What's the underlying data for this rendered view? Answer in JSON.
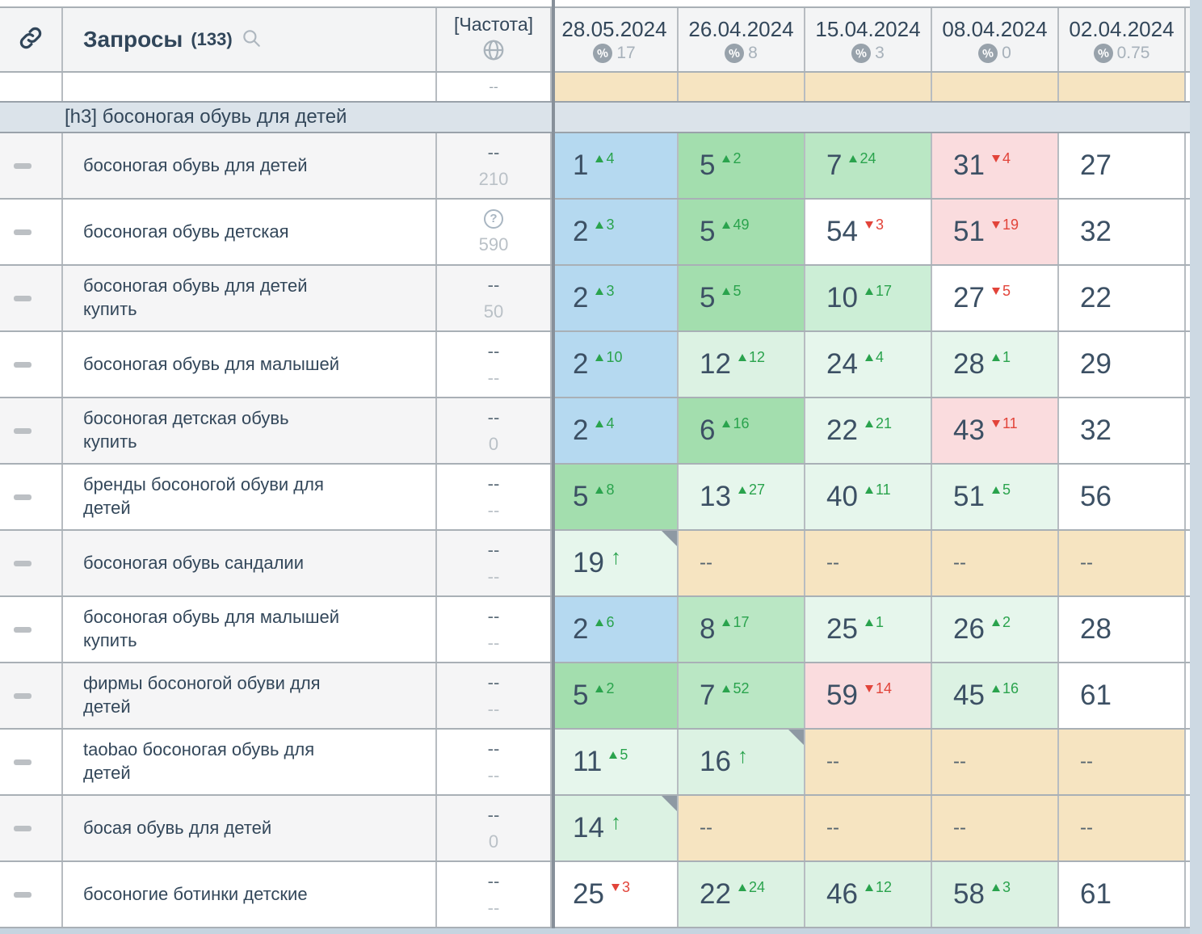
{
  "header": {
    "queries_label": "Запросы",
    "queries_count": "(133)",
    "frequency_label": "[Частота]",
    "date_columns": [
      {
        "date": "28.05.2024",
        "percent": "17"
      },
      {
        "date": "26.04.2024",
        "percent": "8"
      },
      {
        "date": "15.04.2024",
        "percent": "3"
      },
      {
        "date": "08.04.2024",
        "percent": "0"
      },
      {
        "date": "02.04.2024",
        "percent": "0.75"
      }
    ]
  },
  "group_header": "[h3] босоногая обувь для детей",
  "partial_row": {
    "freq": "--"
  },
  "rows": [
    {
      "query": "босоногая обувь для детей",
      "freq_top": "--",
      "freq_bottom": "210",
      "cells": [
        {
          "v": "1",
          "chg": "4",
          "dir": "up",
          "bg": "blue"
        },
        {
          "v": "5",
          "chg": "2",
          "dir": "up",
          "bg": "g1"
        },
        {
          "v": "7",
          "chg": "24",
          "dir": "up",
          "bg": "g2"
        },
        {
          "v": "31",
          "chg": "4",
          "dir": "down",
          "bg": "pink"
        },
        {
          "v": "27",
          "dir": "none",
          "bg": "white"
        }
      ]
    },
    {
      "query": "босоногая обувь детская",
      "freq_top": "?",
      "freq_bottom": "590",
      "cells": [
        {
          "v": "2",
          "chg": "3",
          "dir": "up",
          "bg": "blue"
        },
        {
          "v": "5",
          "chg": "49",
          "dir": "up",
          "bg": "g1"
        },
        {
          "v": "54",
          "chg": "3",
          "dir": "down",
          "bg": "white"
        },
        {
          "v": "51",
          "chg": "19",
          "dir": "down",
          "bg": "pink"
        },
        {
          "v": "32",
          "dir": "none",
          "bg": "white"
        }
      ]
    },
    {
      "query": "босоногая обувь для детей купить",
      "freq_top": "--",
      "freq_bottom": "50",
      "cells": [
        {
          "v": "2",
          "chg": "3",
          "dir": "up",
          "bg": "blue"
        },
        {
          "v": "5",
          "chg": "5",
          "dir": "up",
          "bg": "g1"
        },
        {
          "v": "10",
          "chg": "17",
          "dir": "up",
          "bg": "g3"
        },
        {
          "v": "27",
          "chg": "5",
          "dir": "down",
          "bg": "white"
        },
        {
          "v": "22",
          "dir": "none",
          "bg": "white"
        }
      ]
    },
    {
      "query": "босоногая обувь для малышей",
      "freq_top": "--",
      "freq_bottom": "--",
      "cells": [
        {
          "v": "2",
          "chg": "10",
          "dir": "up",
          "bg": "blue"
        },
        {
          "v": "12",
          "chg": "12",
          "dir": "up",
          "bg": "g4"
        },
        {
          "v": "24",
          "chg": "4",
          "dir": "up",
          "bg": "g5"
        },
        {
          "v": "28",
          "chg": "1",
          "dir": "up",
          "bg": "g5"
        },
        {
          "v": "29",
          "dir": "none",
          "bg": "white"
        }
      ]
    },
    {
      "query": "босоногая детская обувь купить",
      "freq_top": "--",
      "freq_bottom": "0",
      "cells": [
        {
          "v": "2",
          "chg": "4",
          "dir": "up",
          "bg": "blue"
        },
        {
          "v": "6",
          "chg": "16",
          "dir": "up",
          "bg": "g1"
        },
        {
          "v": "22",
          "chg": "21",
          "dir": "up",
          "bg": "g5"
        },
        {
          "v": "43",
          "chg": "11",
          "dir": "down",
          "bg": "pink"
        },
        {
          "v": "32",
          "dir": "none",
          "bg": "white"
        }
      ]
    },
    {
      "query": "бренды босоногой обуви для детей",
      "freq_top": "--",
      "freq_bottom": "--",
      "cells": [
        {
          "v": "5",
          "chg": "8",
          "dir": "up",
          "bg": "g1"
        },
        {
          "v": "13",
          "chg": "27",
          "dir": "up",
          "bg": "g5"
        },
        {
          "v": "40",
          "chg": "11",
          "dir": "up",
          "bg": "g5"
        },
        {
          "v": "51",
          "chg": "5",
          "dir": "up",
          "bg": "g5"
        },
        {
          "v": "56",
          "dir": "none",
          "bg": "white"
        }
      ]
    },
    {
      "query": "босоногая обувь сандалии",
      "freq_top": "--",
      "freq_bottom": "--",
      "cells": [
        {
          "v": "19",
          "dir": "new",
          "bg": "g5",
          "corner": true
        },
        {
          "v": "--",
          "dir": "none",
          "bg": "tan"
        },
        {
          "v": "--",
          "dir": "none",
          "bg": "tan"
        },
        {
          "v": "--",
          "dir": "none",
          "bg": "tan"
        },
        {
          "v": "--",
          "dir": "none",
          "bg": "tan"
        }
      ]
    },
    {
      "query": "босоногая обувь для малышей купить",
      "freq_top": "--",
      "freq_bottom": "--",
      "cells": [
        {
          "v": "2",
          "chg": "6",
          "dir": "up",
          "bg": "blue"
        },
        {
          "v": "8",
          "chg": "17",
          "dir": "up",
          "bg": "g2"
        },
        {
          "v": "25",
          "chg": "1",
          "dir": "up",
          "bg": "g5"
        },
        {
          "v": "26",
          "chg": "2",
          "dir": "up",
          "bg": "g5"
        },
        {
          "v": "28",
          "dir": "none",
          "bg": "white"
        }
      ]
    },
    {
      "query": "фирмы босоногой обуви для детей",
      "freq_top": "--",
      "freq_bottom": "--",
      "cells": [
        {
          "v": "5",
          "chg": "2",
          "dir": "up",
          "bg": "g1"
        },
        {
          "v": "7",
          "chg": "52",
          "dir": "up",
          "bg": "g2"
        },
        {
          "v": "59",
          "chg": "14",
          "dir": "down",
          "bg": "pink"
        },
        {
          "v": "45",
          "chg": "16",
          "dir": "up",
          "bg": "g4"
        },
        {
          "v": "61",
          "dir": "none",
          "bg": "white"
        }
      ]
    },
    {
      "query": "taobao босоногая обувь для детей",
      "freq_top": "--",
      "freq_bottom": "--",
      "cells": [
        {
          "v": "11",
          "chg": "5",
          "dir": "up",
          "bg": "g5"
        },
        {
          "v": "16",
          "dir": "new",
          "bg": "g4",
          "corner": true
        },
        {
          "v": "--",
          "dir": "none",
          "bg": "tan"
        },
        {
          "v": "--",
          "dir": "none",
          "bg": "tan"
        },
        {
          "v": "--",
          "dir": "none",
          "bg": "tan"
        }
      ]
    },
    {
      "query": "босая обувь для детей",
      "freq_top": "--",
      "freq_bottom": "0",
      "cells": [
        {
          "v": "14",
          "dir": "new",
          "bg": "g4",
          "corner": true
        },
        {
          "v": "--",
          "dir": "none",
          "bg": "tan"
        },
        {
          "v": "--",
          "dir": "none",
          "bg": "tan"
        },
        {
          "v": "--",
          "dir": "none",
          "bg": "tan"
        },
        {
          "v": "--",
          "dir": "none",
          "bg": "tan"
        }
      ]
    },
    {
      "query": "босоногие ботинки детские",
      "freq_top": "--",
      "freq_bottom": "--",
      "cells": [
        {
          "v": "25",
          "chg": "3",
          "dir": "down",
          "bg": "white"
        },
        {
          "v": "22",
          "chg": "24",
          "dir": "up",
          "bg": "g4"
        },
        {
          "v": "46",
          "chg": "12",
          "dir": "up",
          "bg": "g4"
        },
        {
          "v": "58",
          "chg": "3",
          "dir": "up",
          "bg": "g4"
        },
        {
          "v": "61",
          "dir": "none",
          "bg": "white"
        }
      ]
    }
  ],
  "colors": {
    "cell_bg": {
      "blue": "#b5d9f0",
      "g1": "#a3deae",
      "g2": "#bae7c4",
      "g3": "#cceed6",
      "g4": "#dcf2e3",
      "g5": "#e6f6ec",
      "white": "#ffffff",
      "pink": "#fadcde",
      "tan": "#f6e4c1"
    },
    "up_green": "#2aa34d",
    "down_red": "#e2443a",
    "header_text": "#33475a",
    "group_header_bg": "#dbe3ea",
    "new_entry_corner": "#8e99a3"
  }
}
